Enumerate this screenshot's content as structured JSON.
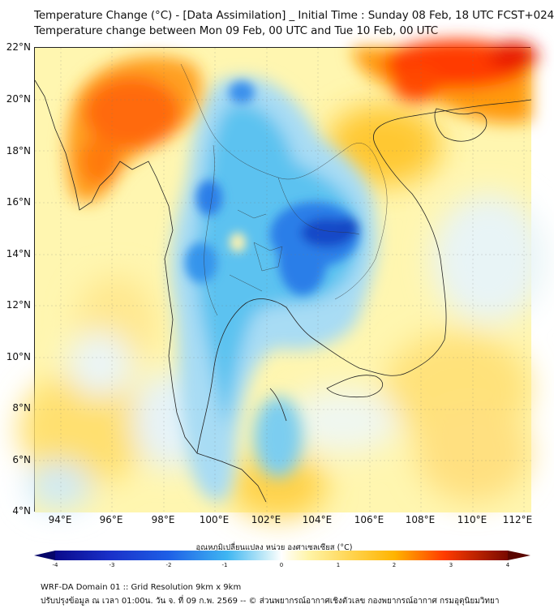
{
  "title": {
    "line1": "Temperature Change (°C) - [Data Assimilation] _ Initial Time : Sunday 08 Feb, 18 UTC FCST+024",
    "line2": "Temperature change between Mon 09 Feb, 00 UTC and Tue 10 Feb, 00 UTC"
  },
  "axes": {
    "lat_labels": [
      "22°N",
      "20°N",
      "18°N",
      "16°N",
      "14°N",
      "12°N",
      "10°N",
      "8°N",
      "6°N",
      "4°N"
    ],
    "lon_labels": [
      "94°E",
      "96°E",
      "98°E",
      "100°E",
      "102°E",
      "104°E",
      "106°E",
      "108°E",
      "110°E",
      "112°E"
    ],
    "lat_range": [
      4,
      22
    ],
    "lon_range": [
      93,
      112.3
    ]
  },
  "colorbar": {
    "title": "อุณหภูมิเปลี่ยนแปลง หน่วย องศาเซลเซียส (°C)",
    "ticks": [
      "-4",
      "-3",
      "-2",
      "-1",
      "0",
      "1",
      "2",
      "3",
      "4"
    ],
    "min": -4,
    "max": 4,
    "colors": {
      "deep_cold": "#0a0a8c",
      "cold": "#1e5fe6",
      "cool": "#3fb6f2",
      "neutral": "#eef6f8",
      "mild": "#fff4a8",
      "warm": "#ffb400",
      "hot": "#ff3c00",
      "extreme": "#7a0a00"
    }
  },
  "footer": {
    "line1": "WRF-DA Domain 01 :: Grid Resolution 9km x 9km",
    "line2": "ปรับปรุงข้อมูล ณ เวลา 01:00น. วัน จ. ที่ 09 ก.พ. 2569 -- © ส่วนพยากรณ์อากาศเชิงตัวเลข กองพยากรณ์อากาศ กรมอุตุนิยมวิทยา"
  }
}
